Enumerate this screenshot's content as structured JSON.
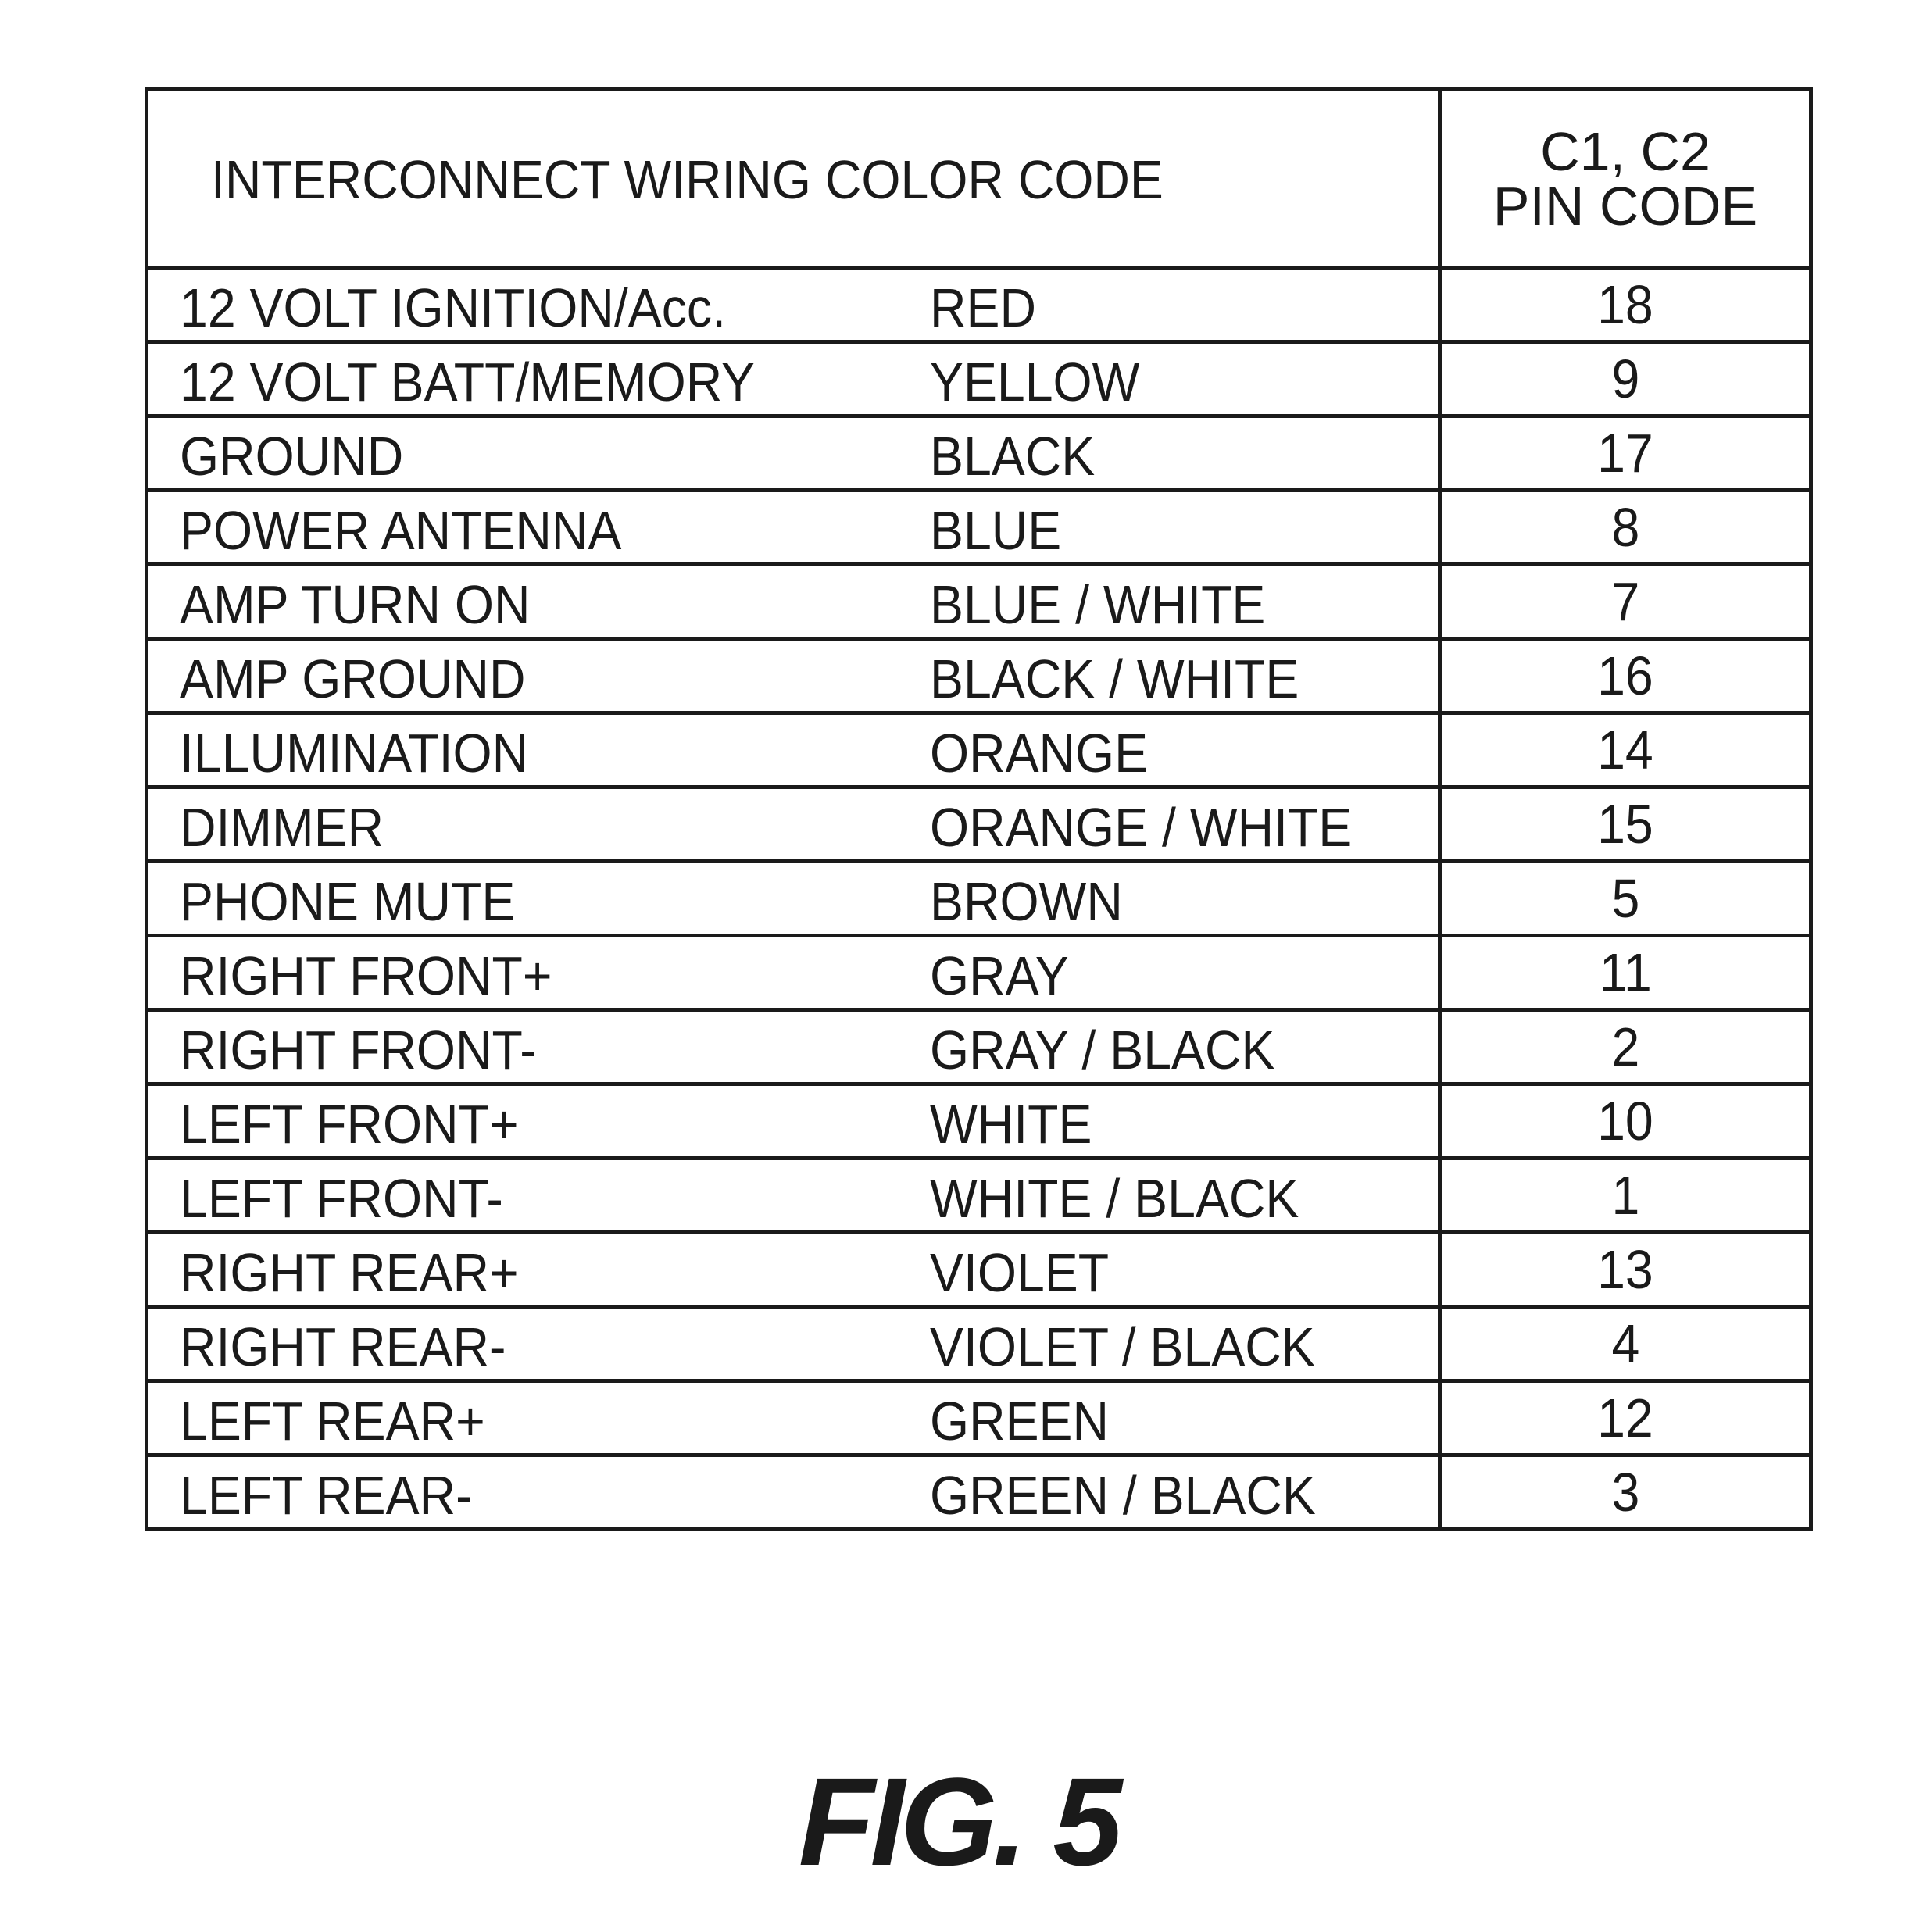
{
  "header": {
    "title": "INTERCONNECT WIRING COLOR CODE",
    "pin_header_line1": "C1, C2",
    "pin_header_line2": "PIN CODE"
  },
  "rows": [
    {
      "function": "12 VOLT IGNITION/Acc.",
      "color": "RED",
      "pin": "18"
    },
    {
      "function": "12 VOLT BATT/MEMORY",
      "color": "YELLOW",
      "pin": "9"
    },
    {
      "function": "GROUND",
      "color": "BLACK",
      "pin": "17"
    },
    {
      "function": "POWER ANTENNA",
      "color": "BLUE",
      "pin": "8"
    },
    {
      "function": "AMP TURN ON",
      "color": "BLUE / WHITE",
      "pin": "7"
    },
    {
      "function": "AMP GROUND",
      "color": "BLACK / WHITE",
      "pin": "16"
    },
    {
      "function": "ILLUMINATION",
      "color": "ORANGE",
      "pin": "14"
    },
    {
      "function": "DIMMER",
      "color": "ORANGE / WHITE",
      "pin": "15"
    },
    {
      "function": "PHONE MUTE",
      "color": "BROWN",
      "pin": "5"
    },
    {
      "function": "RIGHT FRONT+",
      "color": "GRAY",
      "pin": "11"
    },
    {
      "function": "RIGHT FRONT-",
      "color": "GRAY / BLACK",
      "pin": "2"
    },
    {
      "function": "LEFT FRONT+",
      "color": "WHITE",
      "pin": "10"
    },
    {
      "function": "LEFT FRONT-",
      "color": "WHITE / BLACK",
      "pin": "1"
    },
    {
      "function": "RIGHT REAR+",
      "color": "VIOLET",
      "pin": "13"
    },
    {
      "function": "RIGHT REAR-",
      "color": "VIOLET / BLACK",
      "pin": "4"
    },
    {
      "function": "LEFT REAR+",
      "color": "GREEN",
      "pin": "12"
    },
    {
      "function": "LEFT REAR-",
      "color": "GREEN / BLACK",
      "pin": "3"
    }
  ],
  "figure_label": "FIG. 5"
}
